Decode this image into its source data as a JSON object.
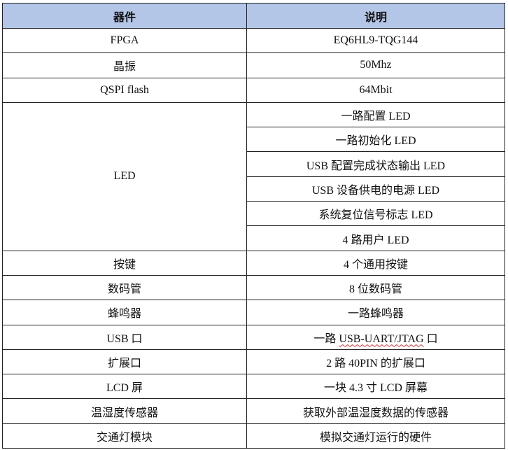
{
  "header": {
    "col1": "器件",
    "col2": "说明",
    "bg": "#b4c6e7"
  },
  "rows": [
    {
      "device": "FPGA",
      "desc": "EQ6HL9-TQG144"
    },
    {
      "device": "晶振",
      "desc": "50Mhz"
    },
    {
      "device": "QSPI flash",
      "desc": "64Mbit"
    },
    {
      "device": "按键",
      "desc": "4 个通用按键"
    },
    {
      "device": "数码管",
      "desc": "8 位数码管"
    },
    {
      "device": "蜂鸣器",
      "desc": "一路蜂鸣器"
    },
    {
      "device": "USB 口",
      "desc_pre": "一路 ",
      "desc_mid": "USB-UART/JTAG",
      "desc_post": " 口"
    },
    {
      "device": "扩展口",
      "desc": "2 路 40PIN 的扩展口"
    },
    {
      "device": "LCD 屏",
      "desc": "一块 4.3 寸 LCD 屏幕"
    },
    {
      "device": "温湿度传感器",
      "desc": "获取外部温湿度数据的传感器"
    },
    {
      "device": "交通灯模块",
      "desc": "模拟交通灯运行的硬件"
    }
  ],
  "led": {
    "device": "LED",
    "items": [
      "一路配置 LED",
      "一路初始化 LED",
      "USB 配置完成状态输出 LED",
      "USB 设备供电的电源 LED",
      "系统复位信号标志 LED",
      "4 路用户 LED"
    ]
  }
}
